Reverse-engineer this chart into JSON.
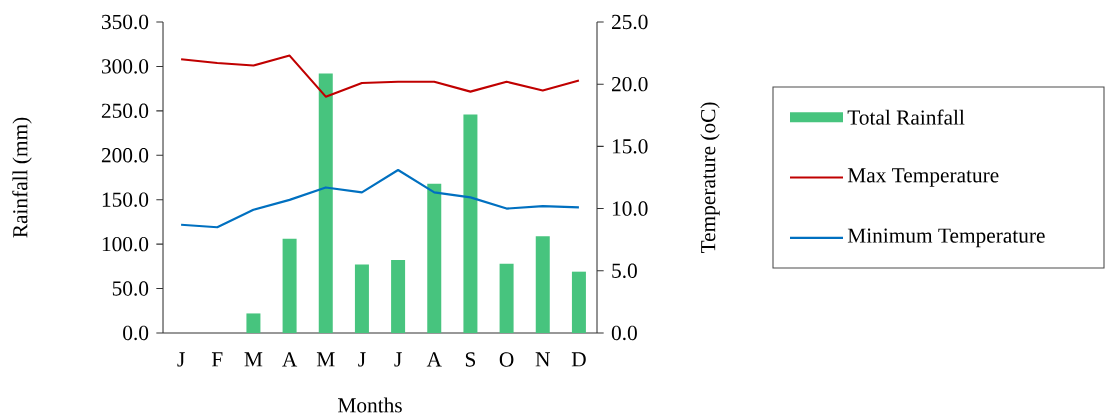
{
  "chart_data": {
    "type": "bar",
    "xlabel": "Months",
    "ylabel": "Rainfall (mm)",
    "y2label": "Temperature (oC)",
    "categories": [
      "J",
      "F",
      "M",
      "A",
      "M",
      "J",
      "J",
      "A",
      "S",
      "O",
      "N",
      "D"
    ],
    "series": [
      {
        "name": "Total Rainfall",
        "color": "#47c47e",
        "values": [
          0,
          0,
          22,
          106,
          292,
          77,
          82,
          168,
          246,
          78,
          109,
          69
        ]
      },
      {
        "name": "Max Temperature",
        "type": "line",
        "axis": "y2",
        "color": "#c00000",
        "values": [
          22.0,
          21.7,
          21.5,
          22.3,
          19.0,
          20.1,
          20.2,
          20.2,
          19.4,
          20.2,
          19.5,
          20.3
        ]
      },
      {
        "name": "Minimum Temperature",
        "type": "line",
        "axis": "y2",
        "color": "#0070c0",
        "values": [
          8.7,
          8.5,
          9.9,
          10.7,
          11.7,
          11.3,
          13.1,
          11.3,
          10.9,
          10.0,
          10.2,
          10.1
        ]
      }
    ],
    "ylim": [
      0,
      350
    ],
    "yticks": [
      {
        "value": 0,
        "label": "0.0"
      },
      {
        "value": 50,
        "label": "50.0"
      },
      {
        "value": 100,
        "label": "100.0"
      },
      {
        "value": 150,
        "label": "150.0"
      },
      {
        "value": 200,
        "label": "200.0"
      },
      {
        "value": 250,
        "label": "250.0"
      },
      {
        "value": 300,
        "label": "300.0"
      },
      {
        "value": 350,
        "label": "350.0"
      }
    ],
    "y2lim": [
      0,
      25
    ],
    "y2ticks": [
      {
        "value": 0,
        "label": "0.0"
      },
      {
        "value": 5,
        "label": "5.0"
      },
      {
        "value": 10,
        "label": "10.0"
      },
      {
        "value": 15,
        "label": "15.0"
      },
      {
        "value": 20,
        "label": "20.0"
      },
      {
        "value": 25,
        "label": "25.0"
      }
    ],
    "legend": "right",
    "marker": "none",
    "line_style": "solid",
    "grid": false
  }
}
